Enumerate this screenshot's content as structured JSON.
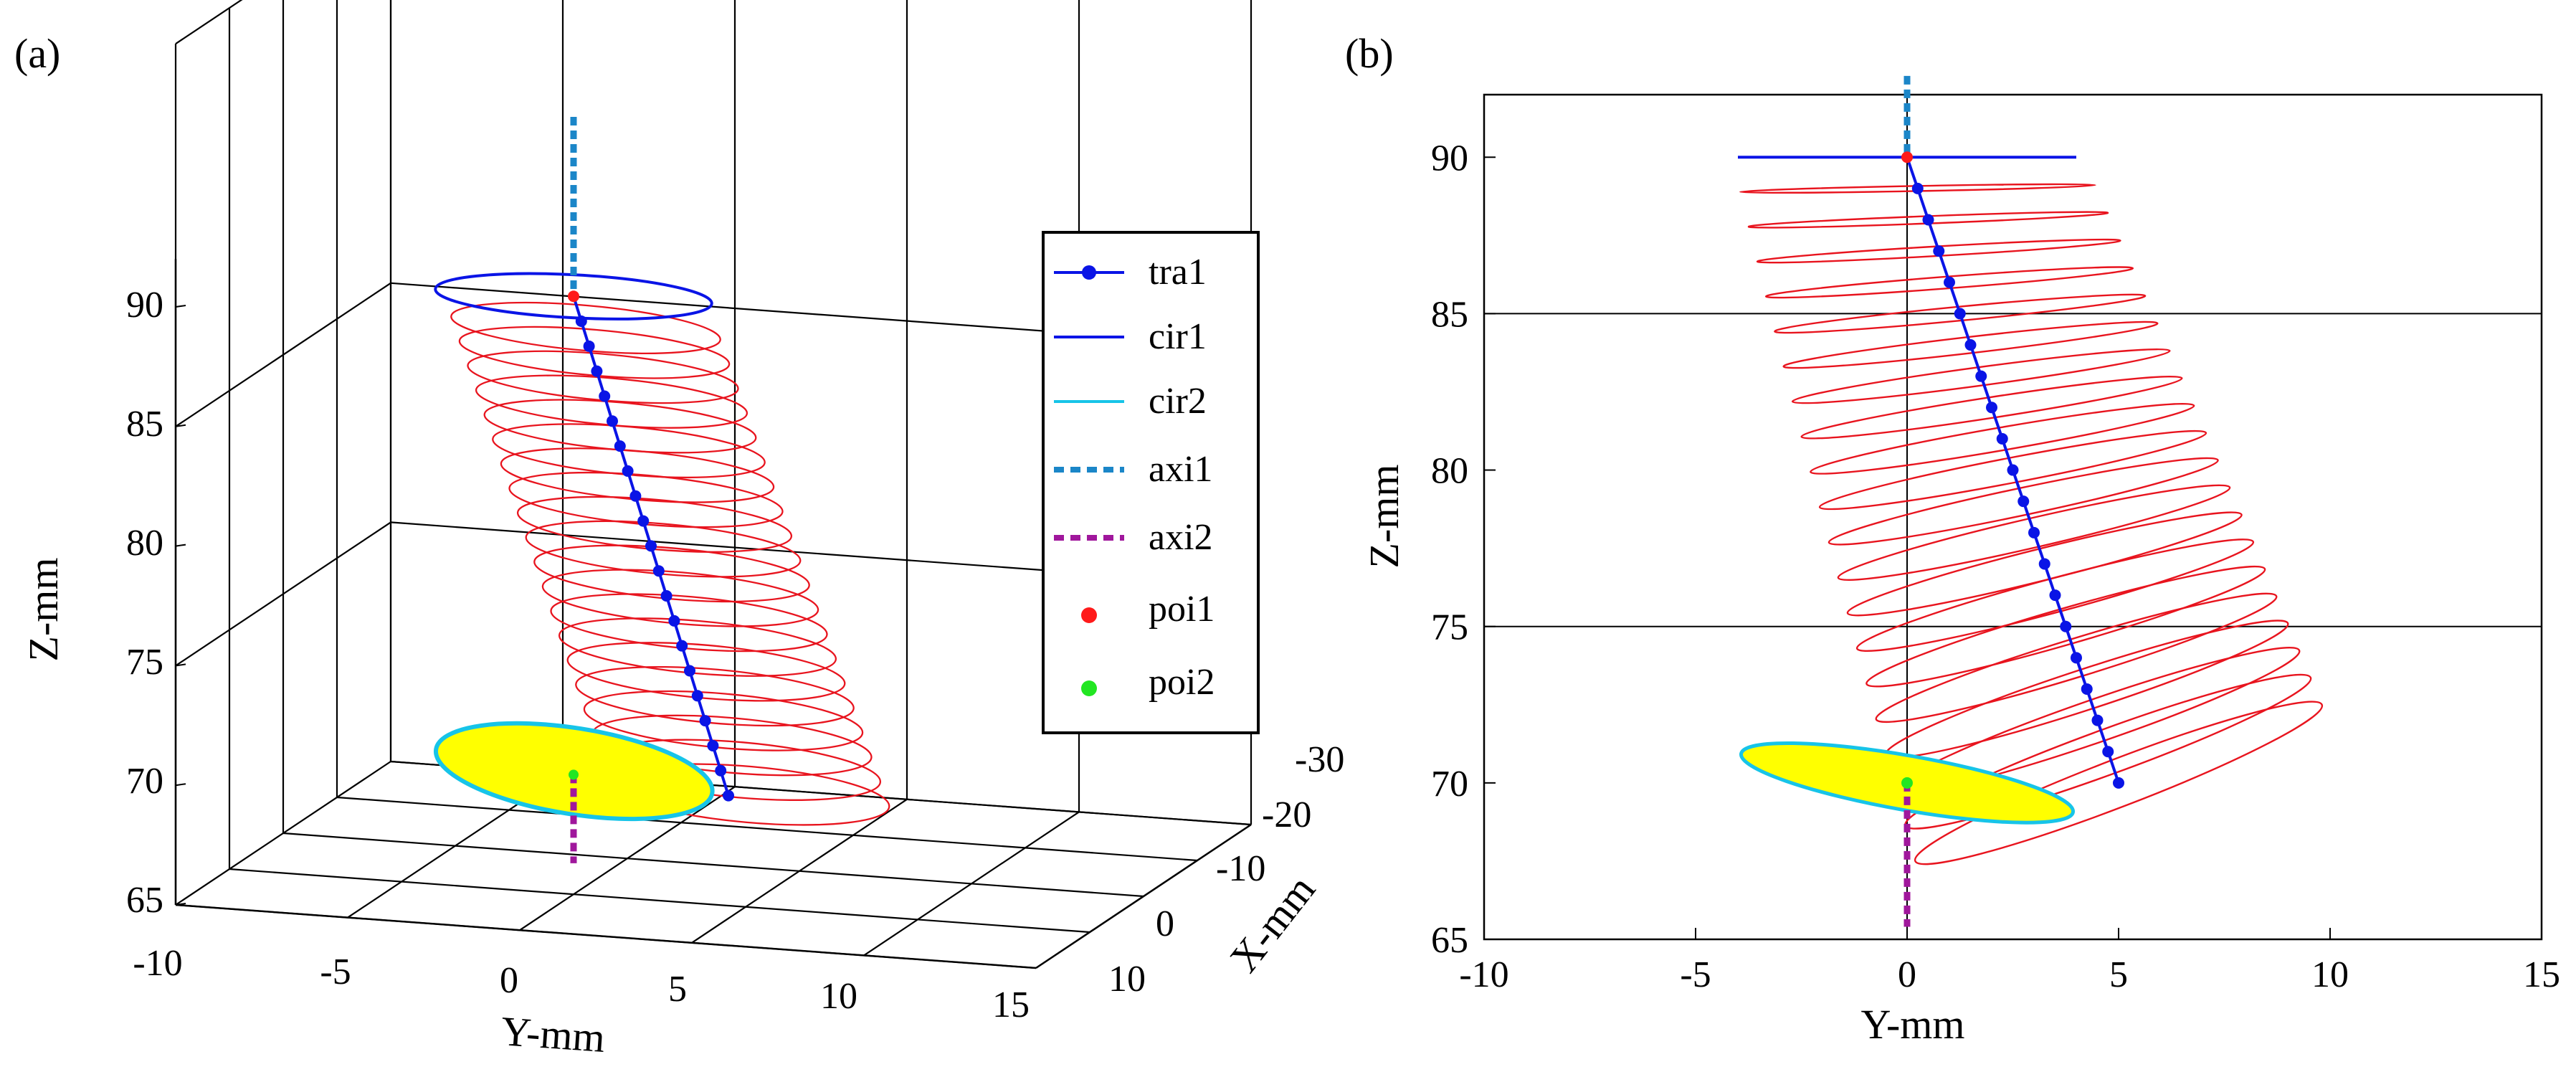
{
  "chart_data": [
    {
      "panel_label": "(a)",
      "type": "3d-line",
      "xlabel": "Y-mm",
      "ylabel": "X-mm",
      "zlabel": "Z-mm",
      "y_ticks": [
        "-10",
        "-5",
        "0",
        "5",
        "10",
        "15"
      ],
      "x_ticks": [
        "-30",
        "-20",
        "-10",
        "0",
        "10"
      ],
      "z_ticks": [
        "65",
        "70",
        "75",
        "80",
        "85",
        "90"
      ],
      "grid": true,
      "legend": {
        "placement": "right",
        "entries": [
          {
            "label": "tra1",
            "color": "#0a14e6",
            "style": "line-dot"
          },
          {
            "label": "cir1",
            "color": "#0a14e6",
            "style": "line"
          },
          {
            "label": "cir2",
            "color": "#17c4e8",
            "style": "line"
          },
          {
            "label": "axi1",
            "color": "#1b86c8",
            "style": "dash"
          },
          {
            "label": "axi2",
            "color": "#a0179c",
            "style": "dash"
          },
          {
            "label": "poi1",
            "color": "#ff1a1a",
            "style": "dot"
          },
          {
            "label": "poi2",
            "color": "#22e622",
            "style": "dot"
          }
        ]
      }
    },
    {
      "panel_label": "(b)",
      "type": "line",
      "xlabel": "Y-mm",
      "ylabel": "Z-mm",
      "xlim": [
        -10,
        15
      ],
      "ylim": [
        65,
        92
      ],
      "x_ticks": [
        "-10",
        "-5",
        "0",
        "5",
        "10",
        "15"
      ],
      "y_ticks": [
        "65",
        "70",
        "75",
        "80",
        "85",
        "90"
      ],
      "series": [
        {
          "name": "tra1",
          "x": [
            0,
            0.25,
            0.5,
            0.75,
            1.0,
            1.25,
            1.5,
            1.75,
            2.0,
            2.25,
            2.5,
            2.75,
            3.0,
            3.25,
            3.5,
            3.75,
            4.0,
            4.25,
            4.5,
            4.75,
            5.0
          ],
          "y": [
            90,
            89,
            88,
            87,
            86,
            85,
            84,
            83,
            82,
            81,
            80,
            79,
            78,
            77,
            76,
            75,
            74,
            73,
            72,
            71,
            70
          ]
        }
      ],
      "colors": {
        "trajectory": "#0a14e6",
        "circles": "#e8141e",
        "ellipse_fill": "#ffff00",
        "ellipse_edge": "#17c4e8",
        "axis1": "#1b86c8",
        "axis2": "#a0179c",
        "poi1": "#ff1a1a",
        "poi2": "#22e622"
      }
    }
  ]
}
